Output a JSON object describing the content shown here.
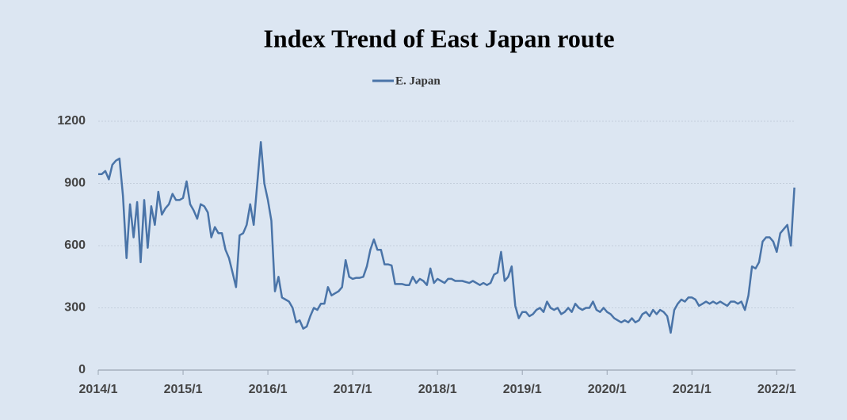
{
  "chart_data": {
    "type": "line",
    "title": "Index Trend of East Japan  route",
    "categories": [
      "2014/1",
      null,
      null,
      null,
      null,
      null,
      null,
      null,
      null,
      null,
      null,
      null,
      null,
      null,
      null,
      null,
      null,
      null,
      null,
      null,
      null,
      null,
      null,
      null,
      "2015/1",
      null,
      null,
      null,
      null,
      null,
      null,
      null,
      null,
      null,
      null,
      null,
      null,
      null,
      null,
      null,
      null,
      null,
      null,
      null,
      null,
      null,
      null,
      null,
      "2016/1",
      null,
      null,
      null,
      null,
      null,
      null,
      null,
      null,
      null,
      null,
      null,
      null,
      null,
      null,
      null,
      null,
      null,
      null,
      null,
      null,
      null,
      null,
      null,
      "2017/1",
      null,
      null,
      null,
      null,
      null,
      null,
      null,
      null,
      null,
      null,
      null,
      null,
      null,
      null,
      null,
      null,
      null,
      null,
      null,
      null,
      null,
      null,
      null,
      "2018/1",
      null,
      null,
      null,
      null,
      null,
      null,
      null,
      null,
      null,
      null,
      null,
      null,
      null,
      null,
      null,
      null,
      null,
      null,
      null,
      null,
      null,
      null,
      null,
      "2019/1",
      null,
      null,
      null,
      null,
      null,
      null,
      null,
      null,
      null,
      null,
      null,
      null,
      null,
      null,
      null,
      null,
      null,
      null,
      null,
      null,
      null,
      null,
      null,
      "2020/1",
      null,
      null,
      null,
      null,
      null,
      null,
      null,
      null,
      null,
      null,
      null,
      null,
      null,
      null,
      null,
      null,
      null,
      null,
      null,
      null,
      null,
      null,
      null,
      "2021/1",
      null,
      null,
      null,
      null,
      null,
      null,
      null,
      null,
      null,
      null,
      null,
      null,
      null,
      null,
      null,
      null,
      null,
      null,
      null,
      null,
      null,
      null,
      null,
      "2022/1",
      null,
      null,
      null,
      null,
      null
    ],
    "series": [
      {
        "name": "E. Japan",
        "color": "#4a74a8",
        "values": [
          945,
          945,
          960,
          920,
          990,
          1010,
          1020,
          840,
          540,
          800,
          640,
          810,
          520,
          820,
          590,
          790,
          700,
          860,
          750,
          780,
          800,
          850,
          820,
          820,
          830,
          910,
          800,
          770,
          730,
          800,
          790,
          760,
          640,
          690,
          660,
          660,
          580,
          540,
          470,
          400,
          650,
          660,
          700,
          800,
          700,
          900,
          1100,
          900,
          820,
          720,
          380,
          450,
          350,
          340,
          330,
          300,
          230,
          240,
          200,
          210,
          260,
          300,
          290,
          320,
          320,
          400,
          360,
          370,
          380,
          400,
          530,
          450,
          440,
          445,
          445,
          450,
          500,
          580,
          630,
          580,
          580,
          510,
          510,
          505,
          415,
          415,
          415,
          410,
          410,
          450,
          420,
          440,
          430,
          410,
          490,
          420,
          440,
          430,
          420,
          440,
          440,
          430,
          430,
          430,
          425,
          420,
          430,
          420,
          410,
          420,
          410,
          420,
          460,
          470,
          570,
          430,
          450,
          500,
          310,
          250,
          280,
          280,
          260,
          270,
          290,
          300,
          280,
          330,
          300,
          290,
          300,
          270,
          280,
          300,
          280,
          320,
          300,
          290,
          300,
          300,
          330,
          290,
          280,
          300,
          280,
          270,
          250,
          240,
          230,
          240,
          230,
          250,
          230,
          240,
          270,
          280,
          260,
          290,
          270,
          290,
          280,
          260,
          180,
          290,
          320,
          340,
          330,
          350,
          350,
          340,
          310,
          320,
          330,
          320,
          330,
          320,
          330,
          320,
          310,
          330,
          330,
          320,
          330,
          290,
          360,
          500,
          490,
          520,
          620,
          640,
          640,
          620,
          570,
          660,
          680,
          700,
          600,
          880
        ]
      }
    ],
    "ylim": [
      0,
      1200
    ],
    "yticks": [
      0,
      300,
      600,
      900,
      1200
    ],
    "grid": true,
    "legend": "top"
  }
}
